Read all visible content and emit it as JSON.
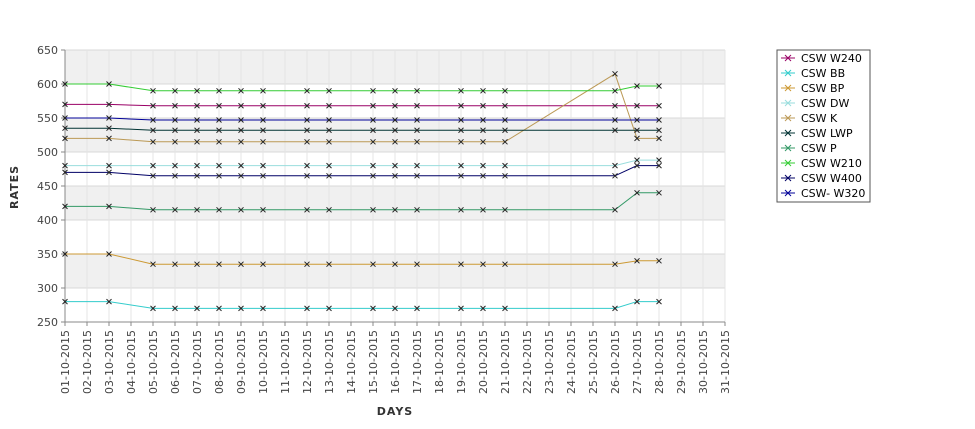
{
  "chart_data": {
    "type": "line",
    "xlabel": "DAYS",
    "ylabel": "RATES",
    "ylim": [
      250,
      650
    ],
    "yticks": [
      250,
      300,
      350,
      400,
      450,
      500,
      550,
      600,
      650
    ],
    "xtick_labels": [
      "01-10-2015",
      "02-10-2015",
      "03-10-2015",
      "04-10-2015",
      "05-10-2015",
      "06-10-2015",
      "07-10-2015",
      "08-10-2015",
      "09-10-2015",
      "10-10-2015",
      "11-10-2015",
      "12-10-2015",
      "13-10-2015",
      "14-10-2015",
      "15-10-2015",
      "16-10-2015",
      "17-10-2015",
      "18-10-2015",
      "19-10-2015",
      "20-10-2015",
      "21-10-2015",
      "22-10-2015",
      "23-10-2015",
      "24-10-2015",
      "25-10-2015",
      "26-10-2015",
      "27-10-2015",
      "28-10-2015",
      "29-10-2015",
      "30-10-2015",
      "31-10-2015"
    ],
    "x": [
      "01-10-2015",
      "03-10-2015",
      "05-10-2015",
      "06-10-2015",
      "07-10-2015",
      "08-10-2015",
      "09-10-2015",
      "10-10-2015",
      "12-10-2015",
      "13-10-2015",
      "15-10-2015",
      "16-10-2015",
      "17-10-2015",
      "19-10-2015",
      "20-10-2015",
      "21-10-2015",
      "26-10-2015",
      "27-10-2015",
      "28-10-2015"
    ],
    "grid": true,
    "legend_position": "right",
    "series": [
      {
        "name": "CSW  W240",
        "color": "#990066",
        "values": [
          570,
          570,
          568,
          568,
          568,
          568,
          568,
          568,
          568,
          568,
          568,
          568,
          568,
          568,
          568,
          568,
          568,
          568,
          568
        ]
      },
      {
        "name": "CSW BB",
        "color": "#33cccc",
        "values": [
          280,
          280,
          270,
          270,
          270,
          270,
          270,
          270,
          270,
          270,
          270,
          270,
          270,
          270,
          270,
          270,
          270,
          280,
          280
        ]
      },
      {
        "name": "CSW BP",
        "color": "#cc9933",
        "values": [
          350,
          350,
          335,
          335,
          335,
          335,
          335,
          335,
          335,
          335,
          335,
          335,
          335,
          335,
          335,
          335,
          335,
          340,
          340
        ]
      },
      {
        "name": "CSW DW",
        "color": "#99dddd",
        "values": [
          480,
          480,
          480,
          480,
          480,
          480,
          480,
          480,
          480,
          480,
          480,
          480,
          480,
          480,
          480,
          480,
          480,
          488,
          488
        ]
      },
      {
        "name": "CSW K",
        "color": "#bb9955",
        "values": [
          520,
          520,
          515,
          515,
          515,
          515,
          515,
          515,
          515,
          515,
          515,
          515,
          515,
          515,
          515,
          515,
          615,
          520,
          520
        ]
      },
      {
        "name": "CSW LWP",
        "color": "#003333",
        "values": [
          535,
          535,
          532,
          532,
          532,
          532,
          532,
          532,
          532,
          532,
          532,
          532,
          532,
          532,
          532,
          532,
          532,
          532,
          532
        ]
      },
      {
        "name": "CSW P",
        "color": "#339966",
        "values": [
          420,
          420,
          415,
          415,
          415,
          415,
          415,
          415,
          415,
          415,
          415,
          415,
          415,
          415,
          415,
          415,
          415,
          440,
          440
        ]
      },
      {
        "name": "CSW W210",
        "color": "#33cc33",
        "values": [
          600,
          600,
          590,
          590,
          590,
          590,
          590,
          590,
          590,
          590,
          590,
          590,
          590,
          590,
          590,
          590,
          590,
          597,
          597
        ]
      },
      {
        "name": "CSW W400",
        "color": "#000066",
        "values": [
          470,
          470,
          465,
          465,
          465,
          465,
          465,
          465,
          465,
          465,
          465,
          465,
          465,
          465,
          465,
          465,
          465,
          480,
          480
        ]
      },
      {
        "name": "CSW- W320",
        "color": "#000099",
        "values": [
          550,
          550,
          547,
          547,
          547,
          547,
          547,
          547,
          547,
          547,
          547,
          547,
          547,
          547,
          547,
          547,
          547,
          547,
          547
        ]
      }
    ]
  }
}
